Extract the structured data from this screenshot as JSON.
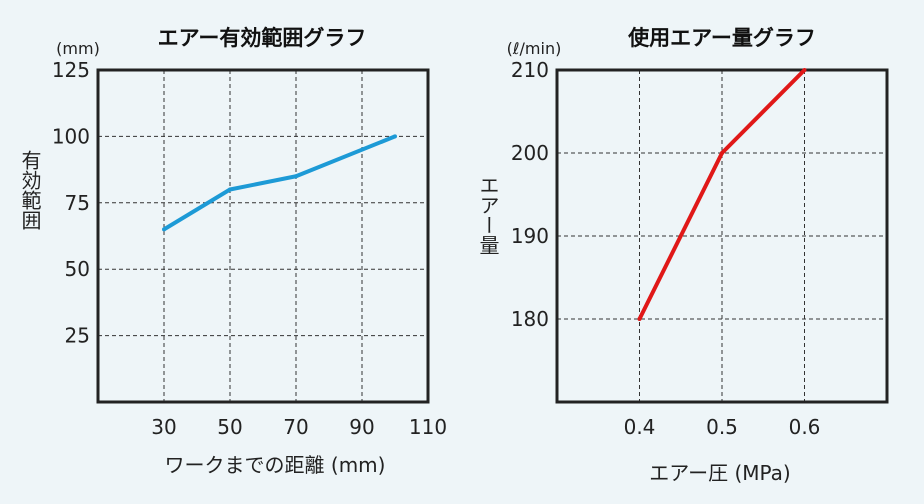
{
  "chart_data": [
    {
      "type": "line",
      "title": "エアー有効範囲グラフ",
      "y_unit": "(mm)",
      "ylabel": "有効範囲",
      "xlabel": "ワークまでの距離 (mm)",
      "x_ticks": [
        30,
        50,
        70,
        90,
        110
      ],
      "y_ticks": [
        25,
        50,
        75,
        100,
        125
      ],
      "xlim": [
        10,
        110
      ],
      "ylim": [
        0,
        125
      ],
      "grid": true,
      "color": "#1d9ad6",
      "x": [
        30,
        50,
        70,
        100
      ],
      "y": [
        65,
        80,
        85,
        100
      ]
    },
    {
      "type": "line",
      "title": "使用エアー量グラフ",
      "y_unit": "(ℓ/min)",
      "ylabel": "エアー量",
      "xlabel": "エアー圧 (MPa)",
      "x_ticks": [
        "0.4",
        "0.5",
        "0.6"
      ],
      "y_ticks": [
        180,
        190,
        200,
        210
      ],
      "xlim": [
        0.3,
        0.7
      ],
      "ylim": [
        170,
        210
      ],
      "grid": true,
      "color": "#e01818",
      "x": [
        0.4,
        0.5,
        0.6
      ],
      "y": [
        180,
        200,
        210
      ]
    }
  ]
}
